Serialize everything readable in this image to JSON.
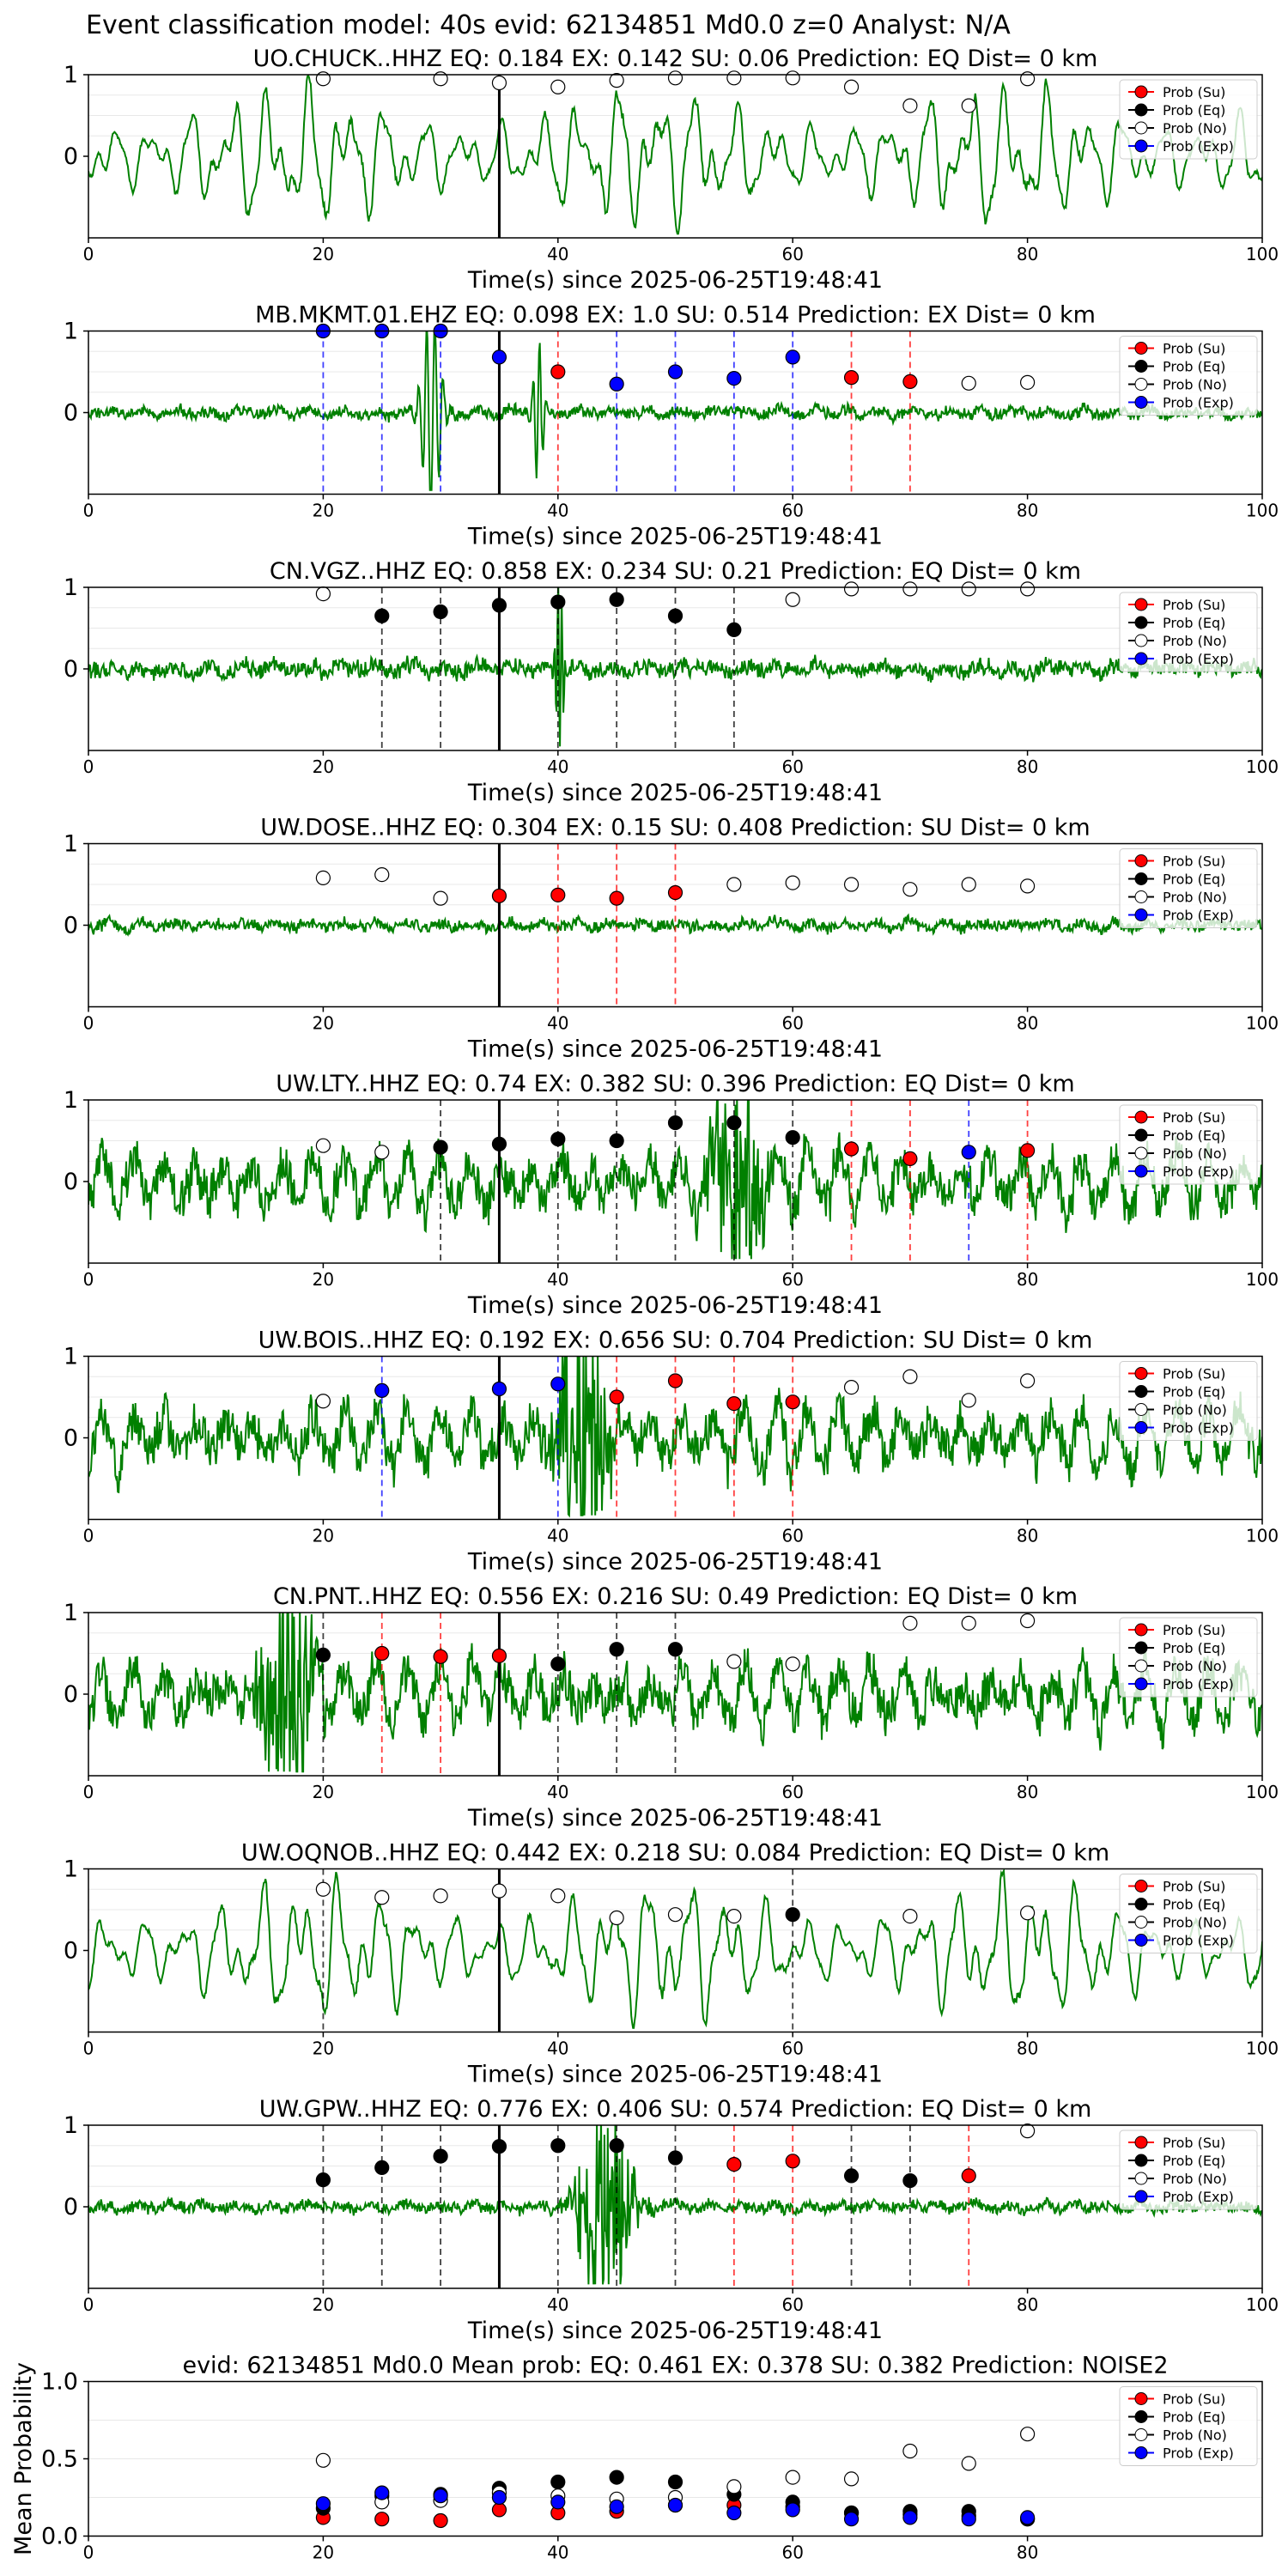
{
  "figure": {
    "title": "Event classification model: 40s evid: 62134851 Md0.0 z=0 Analyst: N/A",
    "legend_entries": [
      "Prob (Su)",
      "Prob (Eq)",
      "Prob (No)",
      "Prob (Exp)"
    ],
    "colors": {
      "waveform": "#008000",
      "su": "#ff0000",
      "eq": "#000000",
      "no": "#ffffff",
      "exp": "#0000ff",
      "arrival_line": "#000000"
    }
  },
  "chart_data": [
    {
      "type": "line",
      "title": "UO.CHUCK..HHZ   EQ: 0.184  EX: 0.142  SU: 0.06   Prediction: EQ    Dist= 0 km",
      "xlabel": "Time(s) since 2025-06-25T19:48:41",
      "xlim": [
        0,
        100
      ],
      "ylim": [
        -1,
        1
      ],
      "xticks": [
        "0",
        "20",
        "40",
        "60",
        "80",
        "100"
      ],
      "yticks": [
        "1",
        "0"
      ],
      "legend": "top-right",
      "waveform_style": "long-period",
      "arrival_time": 35,
      "vlines": [],
      "points": [
        [
          20,
          0.95,
          "no"
        ],
        [
          30,
          0.95,
          "no"
        ],
        [
          35,
          0.9,
          "no"
        ],
        [
          40,
          0.85,
          "no"
        ],
        [
          45,
          0.93,
          "no"
        ],
        [
          50,
          0.96,
          "no"
        ],
        [
          55,
          0.96,
          "no"
        ],
        [
          60,
          0.96,
          "no"
        ],
        [
          65,
          0.85,
          "no"
        ],
        [
          70,
          0.62,
          "no"
        ],
        [
          75,
          0.62,
          "no"
        ],
        [
          80,
          0.95,
          "no"
        ]
      ]
    },
    {
      "type": "line",
      "title": "MB.MKMT.01.EHZ   EQ: 0.098  EX: 1.0  SU: 0.514   Prediction: EX    Dist= 0 km",
      "xlabel": "Time(s) since 2025-06-25T19:48:41",
      "xlim": [
        0,
        100
      ],
      "ylim": [
        -1,
        1
      ],
      "xticks": [
        "0",
        "20",
        "40",
        "60",
        "80",
        "100"
      ],
      "yticks": [
        "1",
        "0"
      ],
      "legend": "top-right",
      "waveform_style": "quiet-impulse",
      "arrival_time": 35,
      "vlines": [
        [
          20,
          "exp"
        ],
        [
          25,
          "exp"
        ],
        [
          30,
          "exp"
        ],
        [
          40,
          "su"
        ],
        [
          45,
          "exp"
        ],
        [
          50,
          "exp"
        ],
        [
          55,
          "exp"
        ],
        [
          60,
          "exp"
        ],
        [
          65,
          "su"
        ],
        [
          70,
          "su"
        ]
      ],
      "points": [
        [
          20,
          1.0,
          "exp"
        ],
        [
          25,
          1.0,
          "exp"
        ],
        [
          30,
          1.0,
          "exp"
        ],
        [
          35,
          0.68,
          "exp"
        ],
        [
          40,
          0.5,
          "su"
        ],
        [
          45,
          0.35,
          "exp"
        ],
        [
          50,
          0.5,
          "exp"
        ],
        [
          55,
          0.42,
          "exp"
        ],
        [
          60,
          0.68,
          "exp"
        ],
        [
          65,
          0.43,
          "su"
        ],
        [
          70,
          0.38,
          "su"
        ],
        [
          75,
          0.36,
          "no"
        ],
        [
          80,
          0.37,
          "no"
        ]
      ]
    },
    {
      "type": "line",
      "title": "CN.VGZ..HHZ   EQ: 0.858  EX: 0.234  SU: 0.21   Prediction: EQ    Dist= 0 km",
      "xlabel": "Time(s) since 2025-06-25T19:48:41",
      "xlim": [
        0,
        100
      ],
      "ylim": [
        -1,
        1
      ],
      "xticks": [
        "0",
        "20",
        "40",
        "60",
        "80",
        "100"
      ],
      "yticks": [
        "1",
        "0"
      ],
      "legend": "top-right",
      "waveform_style": "quiet-spike",
      "arrival_time": 35,
      "vlines": [
        [
          25,
          "eq"
        ],
        [
          30,
          "eq"
        ],
        [
          40,
          "eq"
        ],
        [
          45,
          "eq"
        ],
        [
          50,
          "eq"
        ],
        [
          55,
          "eq"
        ]
      ],
      "points": [
        [
          20,
          0.92,
          "no"
        ],
        [
          25,
          0.65,
          "eq"
        ],
        [
          30,
          0.7,
          "eq"
        ],
        [
          35,
          0.78,
          "eq"
        ],
        [
          40,
          0.82,
          "eq"
        ],
        [
          45,
          0.85,
          "eq"
        ],
        [
          50,
          0.65,
          "eq"
        ],
        [
          55,
          0.48,
          "eq"
        ],
        [
          60,
          0.85,
          "no"
        ],
        [
          65,
          0.98,
          "no"
        ],
        [
          70,
          0.98,
          "no"
        ],
        [
          75,
          0.98,
          "no"
        ],
        [
          80,
          0.98,
          "no"
        ]
      ]
    },
    {
      "type": "line",
      "title": "UW.DOSE..HHZ   EQ: 0.304  EX: 0.15  SU: 0.408   Prediction: SU    Dist= 0 km",
      "xlabel": "Time(s) since 2025-06-25T19:48:41",
      "xlim": [
        0,
        100
      ],
      "ylim": [
        -1,
        1
      ],
      "xticks": [
        "0",
        "20",
        "40",
        "60",
        "80",
        "100"
      ],
      "yticks": [
        "1",
        "0"
      ],
      "legend": "top-right",
      "waveform_style": "quiet-noise",
      "arrival_time": 35,
      "vlines": [
        [
          40,
          "su"
        ],
        [
          45,
          "su"
        ],
        [
          50,
          "su"
        ]
      ],
      "points": [
        [
          20,
          0.58,
          "no"
        ],
        [
          25,
          0.62,
          "no"
        ],
        [
          30,
          0.33,
          "no"
        ],
        [
          35,
          0.36,
          "su"
        ],
        [
          40,
          0.37,
          "su"
        ],
        [
          45,
          0.33,
          "su"
        ],
        [
          50,
          0.4,
          "su"
        ],
        [
          55,
          0.5,
          "no"
        ],
        [
          60,
          0.52,
          "no"
        ],
        [
          65,
          0.5,
          "no"
        ],
        [
          70,
          0.44,
          "no"
        ],
        [
          75,
          0.5,
          "no"
        ],
        [
          80,
          0.48,
          "no"
        ]
      ]
    },
    {
      "type": "line",
      "title": "UW.LTY..HHZ   EQ: 0.74  EX: 0.382  SU: 0.396   Prediction: EQ    Dist= 0 km",
      "xlabel": "Time(s) since 2025-06-25T19:48:41",
      "xlim": [
        0,
        100
      ],
      "ylim": [
        -1,
        1
      ],
      "xticks": [
        "0",
        "20",
        "40",
        "60",
        "80",
        "100"
      ],
      "yticks": [
        "1",
        "0"
      ],
      "legend": "top-right",
      "waveform_style": "burst-55",
      "arrival_time": 35,
      "vlines": [
        [
          30,
          "eq"
        ],
        [
          40,
          "eq"
        ],
        [
          45,
          "eq"
        ],
        [
          50,
          "eq"
        ],
        [
          55,
          "eq"
        ],
        [
          60,
          "eq"
        ],
        [
          65,
          "su"
        ],
        [
          70,
          "su"
        ],
        [
          75,
          "exp"
        ],
        [
          80,
          "su"
        ]
      ],
      "points": [
        [
          20,
          0.44,
          "no"
        ],
        [
          25,
          0.36,
          "no"
        ],
        [
          30,
          0.42,
          "eq"
        ],
        [
          35,
          0.46,
          "eq"
        ],
        [
          40,
          0.52,
          "eq"
        ],
        [
          45,
          0.5,
          "eq"
        ],
        [
          50,
          0.72,
          "eq"
        ],
        [
          55,
          0.72,
          "eq"
        ],
        [
          60,
          0.54,
          "eq"
        ],
        [
          65,
          0.4,
          "su"
        ],
        [
          70,
          0.28,
          "su"
        ],
        [
          75,
          0.36,
          "exp"
        ],
        [
          80,
          0.38,
          "su"
        ]
      ]
    },
    {
      "type": "line",
      "title": "UW.BOIS..HHZ   EQ: 0.192  EX: 0.656  SU: 0.704   Prediction: SU    Dist= 0 km",
      "xlabel": "Time(s) since 2025-06-25T19:48:41",
      "xlim": [
        0,
        100
      ],
      "ylim": [
        -1,
        1
      ],
      "xticks": [
        "0",
        "20",
        "40",
        "60",
        "80",
        "100"
      ],
      "yticks": [
        "1",
        "0"
      ],
      "legend": "top-right",
      "waveform_style": "burst-42",
      "arrival_time": 35,
      "vlines": [
        [
          25,
          "exp"
        ],
        [
          40,
          "exp"
        ],
        [
          45,
          "su"
        ],
        [
          50,
          "su"
        ],
        [
          55,
          "su"
        ],
        [
          60,
          "su"
        ]
      ],
      "points": [
        [
          20,
          0.45,
          "no"
        ],
        [
          25,
          0.58,
          "exp"
        ],
        [
          35,
          0.6,
          "exp"
        ],
        [
          40,
          0.66,
          "exp"
        ],
        [
          45,
          0.5,
          "su"
        ],
        [
          50,
          0.7,
          "su"
        ],
        [
          55,
          0.42,
          "su"
        ],
        [
          60,
          0.44,
          "su"
        ],
        [
          65,
          0.62,
          "no"
        ],
        [
          70,
          0.75,
          "no"
        ],
        [
          75,
          0.46,
          "no"
        ],
        [
          80,
          0.7,
          "no"
        ]
      ]
    },
    {
      "type": "line",
      "title": "CN.PNT..HHZ   EQ: 0.556  EX: 0.216  SU: 0.49   Prediction: EQ    Dist= 0 km",
      "xlabel": "Time(s) since 2025-06-25T19:48:41",
      "xlim": [
        0,
        100
      ],
      "ylim": [
        -1,
        1
      ],
      "xticks": [
        "0",
        "20",
        "40",
        "60",
        "80",
        "100"
      ],
      "yticks": [
        "1",
        "0"
      ],
      "legend": "top-right",
      "waveform_style": "burst-17",
      "arrival_time": 35,
      "vlines": [
        [
          20,
          "eq"
        ],
        [
          25,
          "su"
        ],
        [
          30,
          "su"
        ],
        [
          40,
          "eq"
        ],
        [
          45,
          "eq"
        ],
        [
          50,
          "eq"
        ]
      ],
      "points": [
        [
          20,
          0.48,
          "eq"
        ],
        [
          25,
          0.5,
          "su"
        ],
        [
          30,
          0.46,
          "su"
        ],
        [
          35,
          0.47,
          "su"
        ],
        [
          40,
          0.37,
          "eq"
        ],
        [
          45,
          0.55,
          "eq"
        ],
        [
          50,
          0.55,
          "eq"
        ],
        [
          55,
          0.4,
          "no"
        ],
        [
          60,
          0.37,
          "no"
        ],
        [
          70,
          0.87,
          "no"
        ],
        [
          75,
          0.87,
          "no"
        ],
        [
          80,
          0.9,
          "no"
        ]
      ]
    },
    {
      "type": "line",
      "title": "UW.OQNOB..HHZ   EQ: 0.442  EX: 0.218  SU: 0.084   Prediction: EQ    Dist= 0 km",
      "xlabel": "Time(s) since 2025-06-25T19:48:41",
      "xlim": [
        0,
        100
      ],
      "ylim": [
        -1,
        1
      ],
      "xticks": [
        "0",
        "20",
        "40",
        "60",
        "80",
        "100"
      ],
      "yticks": [
        "1",
        "0"
      ],
      "legend": "top-right",
      "waveform_style": "long-period",
      "arrival_time": 35,
      "vlines": [
        [
          20,
          "eq"
        ],
        [
          60,
          "eq"
        ]
      ],
      "points": [
        [
          20,
          0.75,
          "no"
        ],
        [
          25,
          0.65,
          "no"
        ],
        [
          30,
          0.67,
          "no"
        ],
        [
          35,
          0.73,
          "no"
        ],
        [
          40,
          0.67,
          "no"
        ],
        [
          45,
          0.4,
          "no"
        ],
        [
          50,
          0.44,
          "no"
        ],
        [
          55,
          0.42,
          "no"
        ],
        [
          60,
          0.44,
          "eq"
        ],
        [
          70,
          0.42,
          "no"
        ],
        [
          80,
          0.46,
          "no"
        ]
      ]
    },
    {
      "type": "line",
      "title": "UW.GPW..HHZ   EQ: 0.776  EX: 0.406  SU: 0.574   Prediction: EQ    Dist= 0 km",
      "xlabel": "Time(s) since 2025-06-25T19:48:41",
      "xlim": [
        0,
        100
      ],
      "ylim": [
        -1,
        1
      ],
      "xticks": [
        "0",
        "20",
        "40",
        "60",
        "80",
        "100"
      ],
      "yticks": [
        "1",
        "0"
      ],
      "legend": "top-right",
      "waveform_style": "burst-44",
      "arrival_time": 35,
      "vlines": [
        [
          20,
          "eq"
        ],
        [
          25,
          "eq"
        ],
        [
          30,
          "eq"
        ],
        [
          40,
          "eq"
        ],
        [
          45,
          "eq"
        ],
        [
          50,
          "eq"
        ],
        [
          55,
          "su"
        ],
        [
          60,
          "su"
        ],
        [
          65,
          "eq"
        ],
        [
          70,
          "eq"
        ],
        [
          75,
          "su"
        ]
      ],
      "points": [
        [
          20,
          0.33,
          "eq"
        ],
        [
          25,
          0.48,
          "eq"
        ],
        [
          30,
          0.62,
          "eq"
        ],
        [
          35,
          0.74,
          "eq"
        ],
        [
          40,
          0.75,
          "eq"
        ],
        [
          45,
          0.75,
          "eq"
        ],
        [
          50,
          0.6,
          "eq"
        ],
        [
          55,
          0.52,
          "su"
        ],
        [
          60,
          0.56,
          "su"
        ],
        [
          65,
          0.38,
          "eq"
        ],
        [
          70,
          0.32,
          "eq"
        ],
        [
          75,
          0.38,
          "su"
        ],
        [
          80,
          0.93,
          "no"
        ]
      ]
    },
    {
      "type": "scatter",
      "title": "evid: 62134851  Md0.0   Mean prob:    EQ: 0.461  EX: 0.378  SU: 0.382   Prediction: NOISE2",
      "xlabel": "",
      "ylabel": "Mean Probability",
      "xlim": [
        0,
        100
      ],
      "ylim": [
        0,
        1
      ],
      "xticks": [
        "0",
        "20",
        "40",
        "60",
        "80"
      ],
      "yticks": [
        "1.0",
        "0.5",
        "0.0"
      ],
      "legend": "top-right",
      "series": [
        {
          "name": "Prob (Su)",
          "x": [
            20,
            25,
            30,
            35,
            40,
            45,
            50,
            55,
            60,
            65,
            70,
            75,
            80
          ],
          "y": [
            0.12,
            0.11,
            0.1,
            0.17,
            0.15,
            0.16,
            0.2,
            0.2,
            0.19,
            0.15,
            0.14,
            0.13,
            0.11
          ]
        },
        {
          "name": "Prob (Eq)",
          "x": [
            20,
            25,
            30,
            35,
            40,
            45,
            50,
            55,
            60,
            65,
            70,
            75,
            80
          ],
          "y": [
            0.18,
            0.26,
            0.27,
            0.31,
            0.35,
            0.38,
            0.35,
            0.27,
            0.22,
            0.15,
            0.16,
            0.16,
            0.11
          ]
        },
        {
          "name": "Prob (No)",
          "x": [
            20,
            25,
            30,
            35,
            40,
            45,
            50,
            55,
            60,
            65,
            70,
            75,
            80
          ],
          "y": [
            0.49,
            0.22,
            0.23,
            0.28,
            0.26,
            0.24,
            0.25,
            0.32,
            0.38,
            0.37,
            0.55,
            0.47,
            0.66
          ]
        },
        {
          "name": "Prob (Exp)",
          "x": [
            20,
            25,
            30,
            35,
            40,
            45,
            50,
            55,
            60,
            65,
            70,
            75,
            80
          ],
          "y": [
            0.21,
            0.28,
            0.26,
            0.25,
            0.22,
            0.19,
            0.2,
            0.15,
            0.17,
            0.11,
            0.12,
            0.11,
            0.12
          ]
        }
      ]
    }
  ]
}
